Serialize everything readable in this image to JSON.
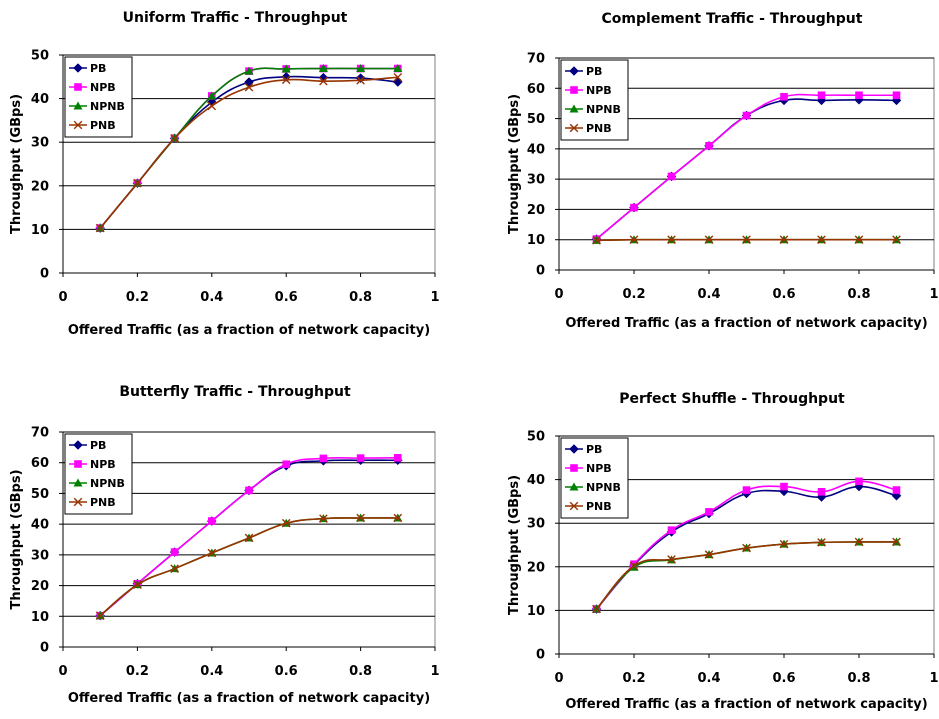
{
  "chart_data": [
    {
      "type": "line",
      "title": "Uniform Traffic - Throughput",
      "xlabel": "Offered Traffic (as a fraction of network capacity)",
      "ylabel": "Throughput (GBps)",
      "xlim": [
        0,
        1
      ],
      "ylim": [
        0,
        50
      ],
      "xticks": [
        0,
        0.2,
        0.4,
        0.6,
        0.8,
        1
      ],
      "xtick_labels": [
        "0",
        "0.2",
        "0.4",
        "0.6",
        "0.8",
        "1"
      ],
      "yticks": [
        0,
        10,
        20,
        30,
        40,
        50
      ],
      "ytick_labels": [
        "0",
        "10",
        "20",
        "30",
        "40",
        "50"
      ],
      "grid": "horizontal",
      "legend_position": "top-left",
      "x": [
        0.1,
        0.2,
        0.3,
        0.4,
        0.5,
        0.6,
        0.7,
        0.8,
        0.9
      ],
      "series": [
        {
          "name": "PB",
          "color": "#000080",
          "marker": "diamond",
          "values": [
            10.3,
            20.6,
            30.9,
            39.2,
            43.8,
            45.0,
            44.8,
            44.7,
            43.8
          ]
        },
        {
          "name": "NPB",
          "color": "#FF00FF",
          "marker": "square",
          "values": [
            10.3,
            20.6,
            30.9,
            40.6,
            46.3,
            46.8,
            46.9,
            46.9,
            46.9
          ]
        },
        {
          "name": "NPNB",
          "color": "#008000",
          "marker": "triangle",
          "values": [
            10.3,
            20.6,
            30.9,
            40.6,
            46.3,
            46.8,
            46.9,
            46.9,
            46.9
          ]
        },
        {
          "name": "PNB",
          "color": "#993300",
          "marker": "x",
          "values": [
            10.3,
            20.6,
            30.9,
            38.3,
            42.6,
            44.3,
            44.0,
            44.2,
            44.9
          ]
        }
      ]
    },
    {
      "type": "line",
      "title": "Complement Traffic - Throughput",
      "xlabel": "Offered Traffic (as a fraction of network capacity)",
      "ylabel": "Throughput (GBps)",
      "xlim": [
        0,
        1
      ],
      "ylim": [
        0,
        70
      ],
      "xticks": [
        0,
        0.2,
        0.4,
        0.6,
        0.8,
        1
      ],
      "xtick_labels": [
        "0",
        "0.2",
        "0.4",
        "0.6",
        "0.8",
        "1"
      ],
      "yticks": [
        0,
        10,
        20,
        30,
        40,
        50,
        60,
        70
      ],
      "ytick_labels": [
        "0",
        "10",
        "20",
        "30",
        "40",
        "50",
        "60",
        "70"
      ],
      "grid": "horizontal",
      "legend_position": "top-left",
      "x": [
        0.1,
        0.2,
        0.3,
        0.4,
        0.5,
        0.6,
        0.7,
        0.8,
        0.9
      ],
      "series": [
        {
          "name": "PB",
          "color": "#000080",
          "marker": "diamond",
          "values": [
            10.2,
            20.6,
            30.9,
            41.0,
            51.0,
            56.0,
            56.0,
            56.2,
            56.0
          ]
        },
        {
          "name": "NPB",
          "color": "#FF00FF",
          "marker": "square",
          "values": [
            10.2,
            20.6,
            30.9,
            41.0,
            51.0,
            57.2,
            57.7,
            57.7,
            57.7
          ]
        },
        {
          "name": "NPNB",
          "color": "#008000",
          "marker": "triangle",
          "values": [
            9.8,
            10.0,
            10.0,
            10.0,
            10.0,
            10.0,
            10.0,
            10.0,
            10.0
          ]
        },
        {
          "name": "PNB",
          "color": "#993300",
          "marker": "x",
          "values": [
            9.8,
            10.0,
            10.0,
            10.0,
            10.0,
            10.0,
            10.0,
            10.0,
            10.0
          ]
        }
      ]
    },
    {
      "type": "line",
      "title": "Butterfly Traffic - Throughput",
      "xlabel": "Offered Traffic (as a fraction of network capacity)",
      "ylabel": "Throughput (GBps)",
      "xlim": [
        0,
        1
      ],
      "ylim": [
        0,
        70
      ],
      "xticks": [
        0,
        0.2,
        0.4,
        0.6,
        0.8,
        1
      ],
      "xtick_labels": [
        "0",
        "0.2",
        "0.4",
        "0.6",
        "0.8",
        "1"
      ],
      "yticks": [
        0,
        10,
        20,
        30,
        40,
        50,
        60,
        70
      ],
      "ytick_labels": [
        "0",
        "10",
        "20",
        "30",
        "40",
        "50",
        "60",
        "70"
      ],
      "grid": "horizontal",
      "legend_position": "top-left",
      "x": [
        0.1,
        0.2,
        0.3,
        0.4,
        0.5,
        0.6,
        0.7,
        0.8,
        0.9
      ],
      "series": [
        {
          "name": "PB",
          "color": "#000080",
          "marker": "diamond",
          "values": [
            10.2,
            20.6,
            30.9,
            41.0,
            51.0,
            59.0,
            60.6,
            60.8,
            60.8
          ]
        },
        {
          "name": "NPB",
          "color": "#FF00FF",
          "marker": "square",
          "values": [
            10.2,
            20.6,
            30.9,
            41.0,
            51.0,
            59.5,
            61.4,
            61.5,
            61.6
          ]
        },
        {
          "name": "NPNB",
          "color": "#008000",
          "marker": "triangle",
          "values": [
            10.2,
            20.3,
            25.5,
            30.6,
            35.5,
            40.3,
            41.8,
            42.0,
            42.0
          ]
        },
        {
          "name": "PNB",
          "color": "#993300",
          "marker": "x",
          "values": [
            10.2,
            20.3,
            25.5,
            30.6,
            35.5,
            40.3,
            41.8,
            42.0,
            42.0
          ]
        }
      ]
    },
    {
      "type": "line",
      "title": "Perfect Shuffle - Throughput",
      "xlabel": "Offered Traffic (as a fraction of network capacity)",
      "ylabel": "Throughput (GBps)",
      "xlim": [
        0,
        1
      ],
      "ylim": [
        0,
        50
      ],
      "xticks": [
        0,
        0.2,
        0.4,
        0.6,
        0.8,
        1
      ],
      "xtick_labels": [
        "0",
        "0.2",
        "0.4",
        "0.6",
        "0.8",
        "1"
      ],
      "yticks": [
        0,
        10,
        20,
        30,
        40,
        50
      ],
      "ytick_labels": [
        "0",
        "10",
        "20",
        "30",
        "40",
        "50"
      ],
      "grid": "horizontal",
      "legend_position": "top-left",
      "x": [
        0.1,
        0.2,
        0.3,
        0.4,
        0.5,
        0.6,
        0.7,
        0.8,
        0.9
      ],
      "series": [
        {
          "name": "PB",
          "color": "#000080",
          "marker": "diamond",
          "values": [
            10.3,
            20.4,
            28.0,
            32.2,
            36.8,
            37.3,
            36.0,
            38.4,
            36.3
          ]
        },
        {
          "name": "NPB",
          "color": "#FF00FF",
          "marker": "square",
          "values": [
            10.3,
            20.6,
            28.4,
            32.6,
            37.6,
            38.4,
            37.2,
            39.6,
            37.6
          ]
        },
        {
          "name": "NPNB",
          "color": "#008000",
          "marker": "triangle",
          "values": [
            10.3,
            19.9,
            21.6,
            22.8,
            24.3,
            25.2,
            25.6,
            25.7,
            25.7
          ]
        },
        {
          "name": "PNB",
          "color": "#993300",
          "marker": "x",
          "values": [
            10.3,
            20.2,
            21.7,
            22.8,
            24.3,
            25.2,
            25.6,
            25.7,
            25.7
          ]
        }
      ]
    }
  ]
}
